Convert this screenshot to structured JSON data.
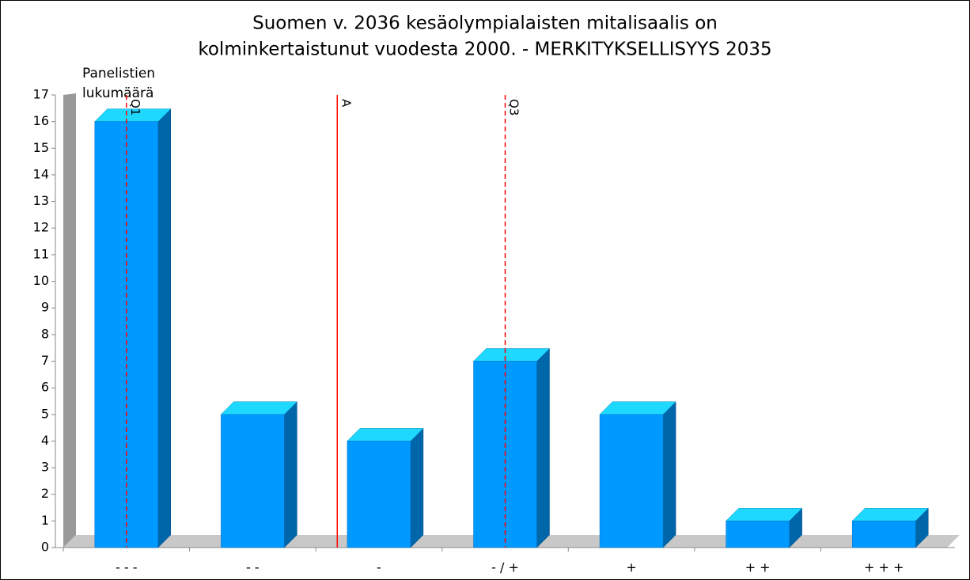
{
  "chart_data": {
    "type": "bar3d",
    "title": [
      "Suomen v. 2036 kesäolympialaisten mitalisaalis on",
      "kolminkertaistunut vuodesta 2000. - MERKITYKSELLISYYS 2035"
    ],
    "y_label": [
      "Panelistien",
      "lukumäärä"
    ],
    "categories": [
      "- - -",
      "- -",
      "-",
      "- / +",
      "+",
      "+ +",
      "+ + +"
    ],
    "values": [
      16,
      5,
      4,
      7,
      5,
      1,
      1
    ],
    "color": "#0099ff",
    "top_color": "#1fd8ff",
    "side_color": "#0066aa",
    "ylim": [
      0,
      17
    ],
    "yticks": [
      0,
      1,
      2,
      3,
      4,
      5,
      6,
      7,
      8,
      9,
      10,
      11,
      12,
      13,
      14,
      15,
      16,
      17
    ],
    "annotations": [
      {
        "label": "Q1",
        "x": 0,
        "dashed": true,
        "color": "#ff0000"
      },
      {
        "label": "A",
        "x": 1.67,
        "dashed": false,
        "color": "#ff0000"
      },
      {
        "label": "Q3",
        "x": 3,
        "dashed": true,
        "color": "#ff0000"
      }
    ]
  }
}
